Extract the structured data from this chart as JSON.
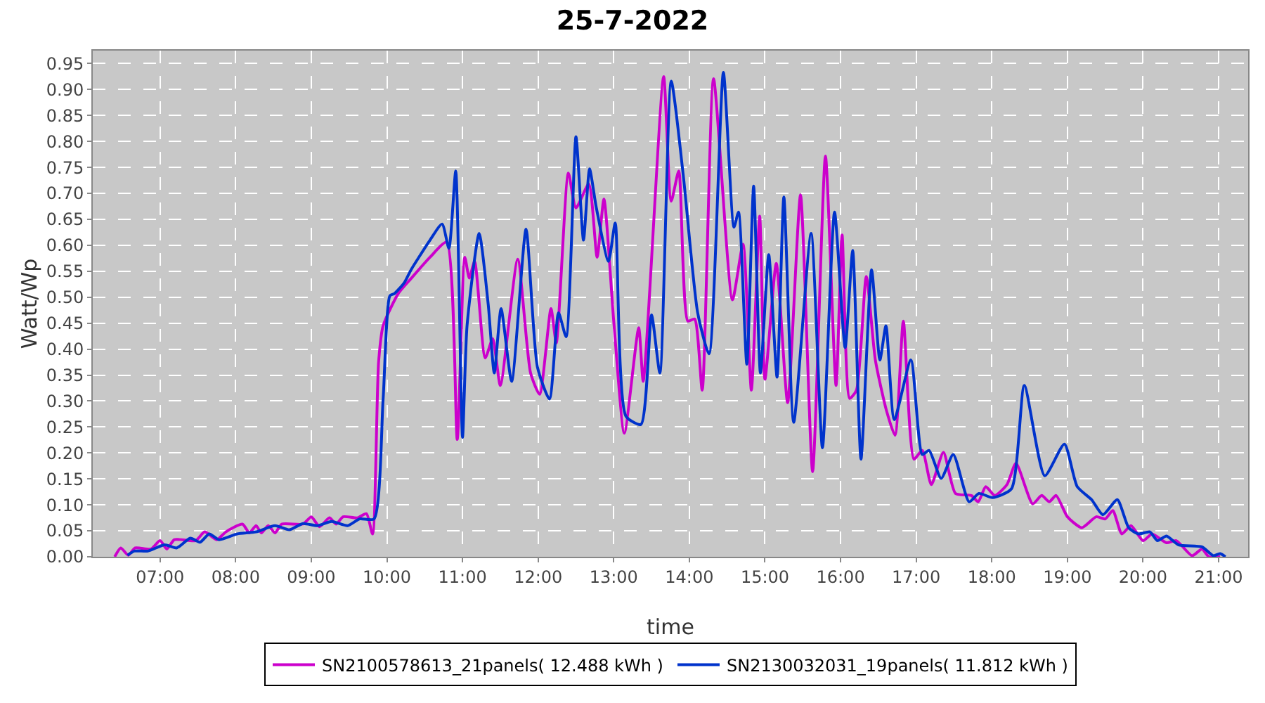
{
  "chart_data": {
    "type": "line",
    "title": "25-7-2022",
    "xlabel": "time",
    "ylabel": "Watt/Wp",
    "xlim": [
      6.11,
      21.39
    ],
    "xticks": [
      {
        "value": 7,
        "label": "07:00"
      },
      {
        "value": 8,
        "label": "08:00"
      },
      {
        "value": 9,
        "label": "09:00"
      },
      {
        "value": 10,
        "label": "10:00"
      },
      {
        "value": 11,
        "label": "11:00"
      },
      {
        "value": 12,
        "label": "12:00"
      },
      {
        "value": 13,
        "label": "13:00"
      },
      {
        "value": 14,
        "label": "14:00"
      },
      {
        "value": 15,
        "label": "15:00"
      },
      {
        "value": 16,
        "label": "16:00"
      },
      {
        "value": 17,
        "label": "17:00"
      },
      {
        "value": 18,
        "label": "18:00"
      },
      {
        "value": 19,
        "label": "19:00"
      },
      {
        "value": 20,
        "label": "20:00"
      },
      {
        "value": 21,
        "label": "21:00"
      }
    ],
    "ylim": [
      0,
      0.975
    ],
    "yticks": [
      {
        "value": 0,
        "label": "0.00"
      },
      {
        "value": 0.05,
        "label": "0.05"
      },
      {
        "value": 0.1,
        "label": "0.10"
      },
      {
        "value": 0.15,
        "label": "0.15"
      },
      {
        "value": 0.2,
        "label": "0.20"
      },
      {
        "value": 0.25,
        "label": "0.25"
      },
      {
        "value": 0.3,
        "label": "0.30"
      },
      {
        "value": 0.35,
        "label": "0.35"
      },
      {
        "value": 0.4,
        "label": "0.40"
      },
      {
        "value": 0.45,
        "label": "0.45"
      },
      {
        "value": 0.5,
        "label": "0.50"
      },
      {
        "value": 0.55,
        "label": "0.55"
      },
      {
        "value": 0.6,
        "label": "0.60"
      },
      {
        "value": 0.65,
        "label": "0.65"
      },
      {
        "value": 0.7,
        "label": "0.70"
      },
      {
        "value": 0.75,
        "label": "0.75"
      },
      {
        "value": 0.8,
        "label": "0.80"
      },
      {
        "value": 0.85,
        "label": "0.85"
      },
      {
        "value": 0.9,
        "label": "0.90"
      },
      {
        "value": 0.95,
        "label": "0.95"
      }
    ],
    "grid": true,
    "legend": "bottom",
    "line_style": "solid",
    "series": [
      {
        "name": "SN2100578613_21panels( 12.488 kWh )",
        "color": "#cc00cc",
        "x": [
          6.4,
          6.48,
          6.58,
          6.67,
          6.88,
          7.0,
          7.09,
          7.19,
          7.47,
          7.59,
          7.75,
          7.87,
          8.09,
          8.18,
          8.27,
          8.34,
          8.43,
          8.52,
          8.61,
          8.89,
          9.0,
          9.11,
          9.24,
          9.33,
          9.42,
          9.61,
          9.73,
          9.81,
          9.89,
          9.95,
          10.15,
          10.32,
          10.57,
          10.79,
          10.93,
          11.03,
          11.09,
          11.16,
          11.3,
          11.4,
          11.5,
          11.73,
          11.9,
          12.02,
          12.17,
          12.24,
          12.4,
          12.5,
          12.67,
          12.78,
          12.87,
          13.0,
          13.14,
          13.33,
          13.39,
          13.66,
          13.76,
          13.86,
          13.98,
          14.07,
          14.17,
          14.32,
          14.57,
          14.71,
          14.82,
          14.93,
          15.0,
          15.15,
          15.3,
          15.47,
          15.63,
          15.8,
          15.94,
          16.02,
          16.12,
          16.21,
          16.34,
          16.46,
          16.61,
          16.72,
          16.83,
          16.97,
          17.08,
          17.2,
          17.36,
          17.52,
          17.73,
          17.82,
          17.92,
          18.04,
          18.2,
          18.32,
          18.54,
          18.66,
          18.76,
          18.85,
          19.0,
          19.19,
          19.38,
          19.5,
          19.6,
          19.72,
          19.84,
          20.0,
          20.12,
          20.31,
          20.44,
          20.65,
          20.78,
          20.87,
          21.02
        ],
        "values": [
          0,
          0.017,
          0.003,
          0.017,
          0.015,
          0.031,
          0.015,
          0.033,
          0.031,
          0.048,
          0.033,
          0.048,
          0.063,
          0.046,
          0.06,
          0.046,
          0.06,
          0.046,
          0.063,
          0.063,
          0.077,
          0.058,
          0.075,
          0.063,
          0.077,
          0.075,
          0.083,
          0.044,
          0.375,
          0.445,
          0.507,
          0.536,
          0.577,
          0.606,
          0.226,
          0.577,
          0.537,
          0.569,
          0.383,
          0.42,
          0.33,
          0.573,
          0.354,
          0.313,
          0.478,
          0.412,
          0.739,
          0.672,
          0.718,
          0.577,
          0.689,
          0.454,
          0.238,
          0.441,
          0.338,
          0.925,
          0.685,
          0.743,
          0.454,
          0.458,
          0.321,
          0.921,
          0.495,
          0.602,
          0.321,
          0.656,
          0.342,
          0.565,
          0.297,
          0.697,
          0.164,
          0.772,
          0.33,
          0.62,
          0.305,
          0.321,
          0.54,
          0.379,
          0.28,
          0.234,
          0.454,
          0.188,
          0.205,
          0.139,
          0.201,
          0.122,
          0.118,
          0.106,
          0.135,
          0.118,
          0.139,
          0.18,
          0.102,
          0.118,
          0.106,
          0.118,
          0.077,
          0.056,
          0.077,
          0.073,
          0.089,
          0.044,
          0.06,
          0.031,
          0.044,
          0.027,
          0.031,
          0.002,
          0.015,
          0,
          0
        ]
      },
      {
        "name": "SN2130032031_19panels( 11.812 kWh )",
        "color": "#0033cc",
        "x": [
          6.57,
          6.66,
          6.84,
          7.06,
          7.22,
          7.4,
          7.53,
          7.65,
          7.78,
          8.02,
          8.27,
          8.52,
          8.71,
          8.89,
          9.08,
          9.27,
          9.48,
          9.64,
          9.83,
          9.95,
          10.04,
          10.1,
          10.23,
          10.32,
          10.57,
          10.73,
          10.82,
          10.91,
          11.0,
          11.06,
          11.22,
          11.34,
          11.42,
          11.51,
          11.65,
          11.84,
          11.99,
          12.15,
          12.27,
          12.37,
          12.5,
          12.6,
          12.68,
          12.77,
          12.93,
          13.02,
          13.16,
          13.36,
          13.5,
          13.61,
          13.76,
          13.92,
          14.11,
          14.26,
          14.45,
          14.59,
          14.65,
          14.76,
          14.85,
          14.94,
          15.05,
          15.16,
          15.25,
          15.38,
          15.61,
          15.76,
          15.92,
          16.06,
          16.16,
          16.27,
          16.41,
          16.52,
          16.6,
          16.71,
          16.93,
          17.08,
          17.17,
          17.33,
          17.49,
          17.7,
          17.83,
          18.01,
          18.26,
          18.43,
          18.7,
          18.96,
          19.13,
          19.32,
          19.47,
          19.66,
          19.81,
          19.94,
          20.09,
          20.19,
          20.31,
          20.47,
          20.78,
          20.93,
          21.02,
          21.09
        ],
        "values": [
          0.003,
          0.011,
          0.011,
          0.023,
          0.017,
          0.036,
          0.028,
          0.044,
          0.033,
          0.044,
          0.048,
          0.06,
          0.052,
          0.064,
          0.06,
          0.068,
          0.06,
          0.073,
          0.073,
          0.304,
          0.503,
          0.507,
          0.528,
          0.553,
          0.61,
          0.641,
          0.594,
          0.743,
          0.23,
          0.445,
          0.623,
          0.486,
          0.354,
          0.478,
          0.338,
          0.631,
          0.366,
          0.304,
          0.47,
          0.424,
          0.809,
          0.61,
          0.747,
          0.672,
          0.569,
          0.643,
          0.271,
          0.255,
          0.466,
          0.354,
          0.916,
          0.734,
          0.47,
          0.391,
          0.933,
          0.635,
          0.664,
          0.371,
          0.714,
          0.354,
          0.582,
          0.346,
          0.693,
          0.259,
          0.623,
          0.21,
          0.664,
          0.403,
          0.59,
          0.188,
          0.553,
          0.379,
          0.445,
          0.264,
          0.379,
          0.197,
          0.205,
          0.151,
          0.197,
          0.106,
          0.122,
          0.114,
          0.131,
          0.33,
          0.156,
          0.217,
          0.135,
          0.11,
          0.081,
          0.11,
          0.056,
          0.044,
          0.048,
          0.031,
          0.04,
          0.023,
          0.019,
          0.002,
          0.006,
          0
        ]
      }
    ]
  }
}
